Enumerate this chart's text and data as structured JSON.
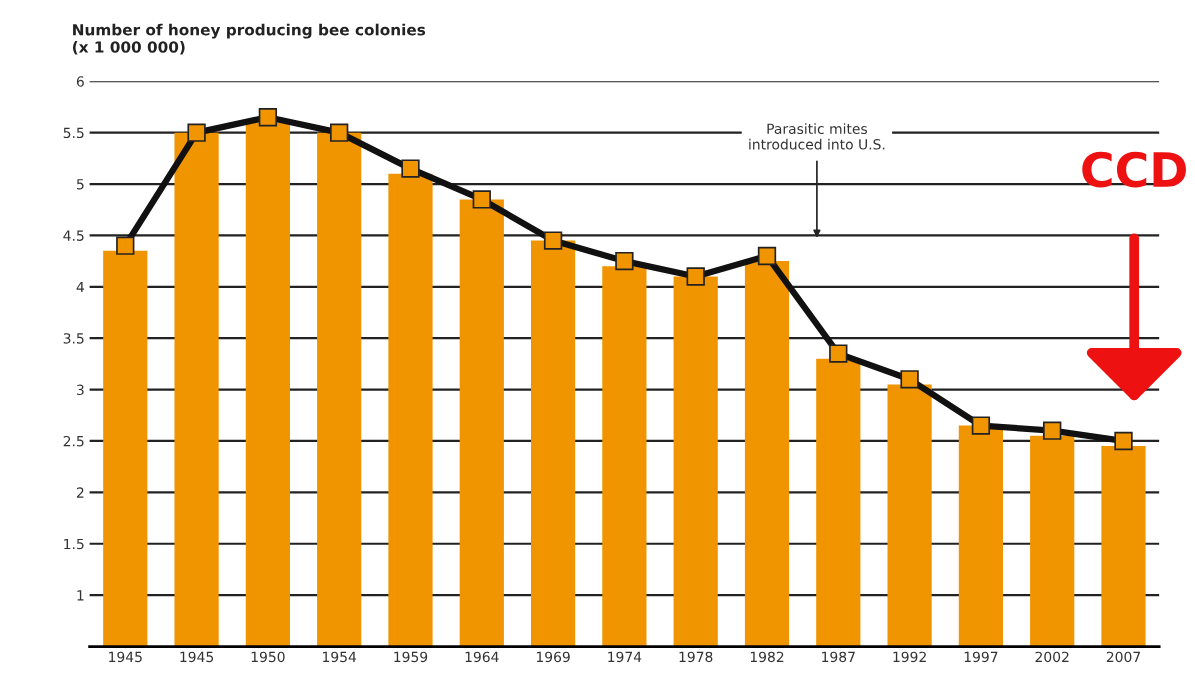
{
  "chart_data": {
    "type": "bar",
    "ylabel": "Number of honey producing bee colonies\n(x 1 000 000)",
    "categories": [
      "1945",
      "1945",
      "1950",
      "1954",
      "1959",
      "1964",
      "1969",
      "1974",
      "1978",
      "1982",
      "1987",
      "1992",
      "1997",
      "2002",
      "2007"
    ],
    "series": [
      {
        "color": "#f09400",
        "values": [
          4.35,
          5.5,
          5.6,
          5.5,
          5.1,
          4.85,
          4.45,
          4.2,
          4.1,
          4.25,
          3.3,
          3.05,
          2.65,
          2.55,
          2.45
        ]
      },
      {
        "type": "line",
        "color": "#111111",
        "marker": "square",
        "values": [
          4.4,
          5.5,
          5.65,
          5.5,
          5.15,
          4.85,
          4.45,
          4.25,
          4.1,
          4.3,
          3.35,
          3.1,
          2.65,
          2.6,
          2.5
        ]
      }
    ],
    "ylim": [
      0.5,
      6
    ],
    "yticks": [
      1,
      1.5,
      2,
      2.5,
      3,
      3.5,
      4,
      4.5,
      5,
      5.5,
      6
    ],
    "grid": "y",
    "annotations": [
      "Parasitic mites\nintroduced into U.S.",
      "CCD"
    ]
  }
}
